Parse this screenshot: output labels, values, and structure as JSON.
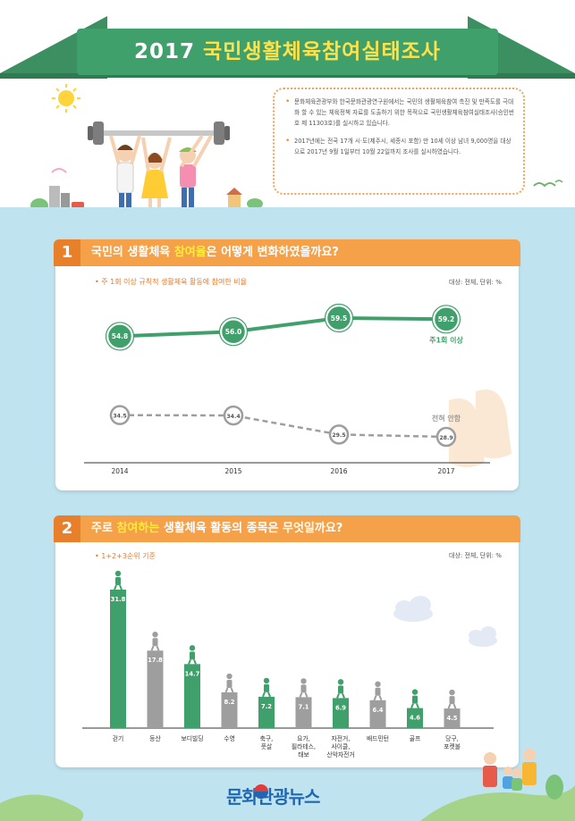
{
  "header": {
    "year": "2017",
    "title": "국민생활체육참여실태조사",
    "intro": [
      "문화체육관광부와 한국문화관광연구원에서는 국민의 생활체육참여 촉진 및 만족도를 극대화 할 수 있는 체육정책 자료를 도출하기 위한 목적으로 국민생활체육참여실태조사(승인번호 제 11303호)를 실시하고 있습니다.",
      "2017년에는 전국 17개 시·도(제주시, 세종시 포함) 만 10세 이상 남녀 9,000명을 대상으로 2017년 9월 1일부터 10월 22일까지 조사를 실시하였습니다."
    ]
  },
  "section1": {
    "number": "1",
    "title_pre": "국민의 생활체육 ",
    "title_highlight": "참여율",
    "title_post": "은 어떻게 변화하였을까요?",
    "subtitle": "• 주 1회 이상 규칙적 생활체육 활동에 참여한 비율",
    "unit": "대상: 전체, 단위: %"
  },
  "section2": {
    "number": "2",
    "title_pre": "주로 ",
    "title_highlight": "참여하는",
    "title_post": " 생활체육 활동의 종목은 무엇일까요?",
    "subtitle": "• 1+2+3순위 기준",
    "unit": "대상: 전체, 단위: %"
  },
  "footer": {
    "logo": "문화관광뉴스"
  },
  "colors": {
    "green": "#3fa06c",
    "orange": "#f5a14a",
    "gray": "#9e9e9e",
    "sky": "#bfe4f0"
  },
  "chart_data": [
    {
      "type": "line",
      "x": [
        "2014",
        "2015",
        "2016",
        "2017"
      ],
      "series": [
        {
          "name": "주1회 이상",
          "values": [
            54.8,
            56.0,
            59.5,
            59.2
          ],
          "color": "#3fa06c"
        },
        {
          "name": "전혀 안함",
          "values": [
            34.5,
            34.4,
            29.5,
            28.9
          ],
          "color": "#9e9e9e"
        }
      ]
    },
    {
      "type": "bar",
      "categories": [
        "걷기",
        "등산",
        "보디빌딩",
        "수영",
        "축구,\n풋살",
        "요가,\n필라테스,\n태보",
        "자전거,\n사이클,\n산악자전거",
        "배드민턴",
        "골프",
        "당구,\n포켓볼"
      ],
      "values": [
        31.8,
        17.8,
        14.7,
        8.2,
        7.2,
        7.1,
        6.9,
        6.4,
        4.6,
        4.5
      ],
      "highlight": [
        true,
        false,
        true,
        false,
        true,
        false,
        true,
        false,
        true,
        false
      ],
      "icons": [
        "walking-icon",
        "hiking-icon",
        "weightlifting-icon",
        "swimming-icon",
        "soccer-icon",
        "yoga-icon",
        "cycling-icon",
        "badminton-icon",
        "golf-icon",
        "billiards-icon"
      ]
    }
  ]
}
